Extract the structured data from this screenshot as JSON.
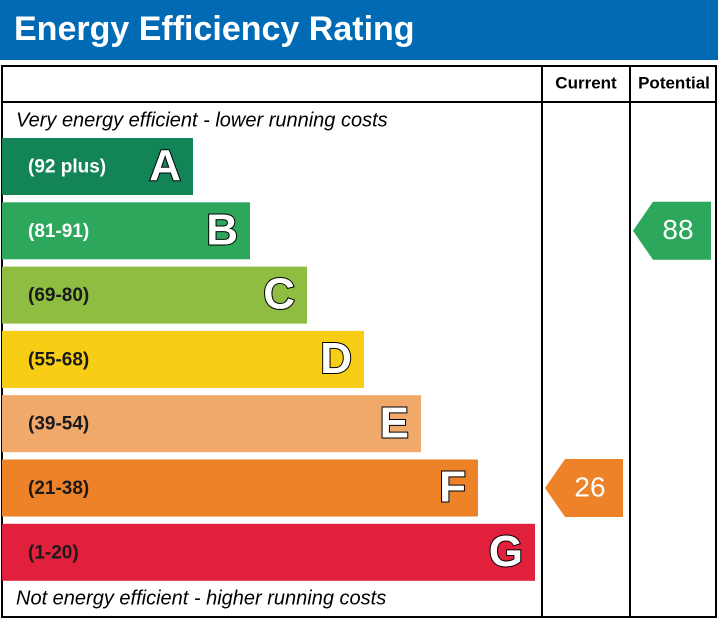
{
  "chart_data": {
    "type": "epc",
    "title": "Energy Efficiency Rating",
    "columns": [
      "Current",
      "Potential"
    ],
    "top_note": "Very energy efficient - lower running costs",
    "bottom_note": "Not energy efficient - higher running costs",
    "bands": [
      {
        "range": "(92 plus)",
        "letter": "A",
        "color": "#138456",
        "text_color": "#ffffff"
      },
      {
        "range": "(81-91)",
        "letter": "B",
        "color": "#2ca75b",
        "text_color": "#ffffff"
      },
      {
        "range": "(69-80)",
        "letter": "C",
        "color": "#8fbd42",
        "text_color": "#1a1a1a"
      },
      {
        "range": "(55-68)",
        "letter": "D",
        "color": "#f7cd16",
        "text_color": "#1a1a1a"
      },
      {
        "range": "(39-54)",
        "letter": "E",
        "color": "#f1a96b",
        "text_color": "#1a1a1a"
      },
      {
        "range": "(21-38)",
        "letter": "F",
        "color": "#ee8229",
        "text_color": "#1a1a1a"
      },
      {
        "range": "(1-20)",
        "letter": "G",
        "color": "#e1213c",
        "text_color": "#1a1a1a"
      }
    ],
    "current": {
      "value": 26,
      "color": "#ee8229"
    },
    "potential": {
      "value": 88,
      "color": "#2ca75b"
    }
  }
}
